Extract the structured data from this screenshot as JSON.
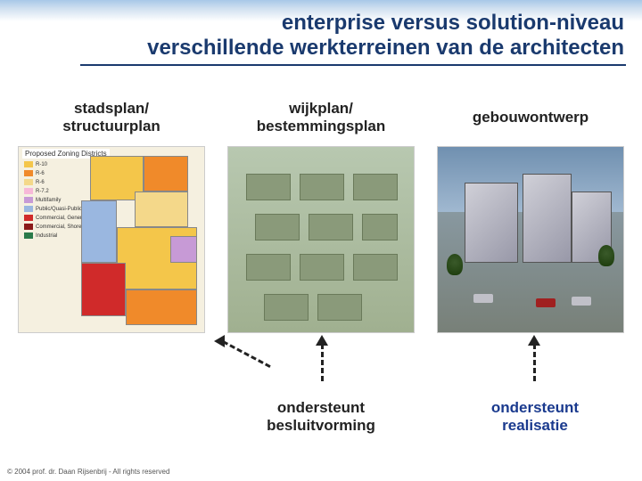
{
  "title": {
    "line1": "enterprise versus solution-niveau",
    "line2": "verschillende werkterreinen van de architecten"
  },
  "columns": [
    {
      "label_line1": "stadsplan/",
      "label_line2": "structuurplan"
    },
    {
      "label_line1": "wijkplan/",
      "label_line2": "bestemmingsplan"
    },
    {
      "label_line1": "gebouwontwerp",
      "label_line2": ""
    }
  ],
  "zoning": {
    "header": "Proposed Zoning Districts",
    "legend": [
      {
        "color": "#f4c64a",
        "label": "R-10"
      },
      {
        "color": "#f08a2a",
        "label": "R-6"
      },
      {
        "color": "#f4d88a",
        "label": "R-6"
      },
      {
        "color": "#f7b8d8",
        "label": "R-7.2"
      },
      {
        "color": "#c79ad6",
        "label": "Multifamily"
      },
      {
        "color": "#9ab7e0",
        "label": "Public/Quasi-Public"
      },
      {
        "color": "#d02a2a",
        "label": "Commercial, General"
      },
      {
        "color": "#8a1a1a",
        "label": "Commercial, Shoreline"
      },
      {
        "color": "#2a7a4a",
        "label": "Industrial"
      }
    ]
  },
  "support": {
    "label1_line1": "ondersteunt",
    "label1_line2": "besluitvorming",
    "label2_line1": "ondersteunt",
    "label2_line2": "realisatie"
  },
  "copyright": "© 2004 prof. dr. Daan Rijsenbrij - All rights reserved",
  "colors": {
    "title": "#1a3a6e",
    "support2": "#1a3a8e"
  }
}
